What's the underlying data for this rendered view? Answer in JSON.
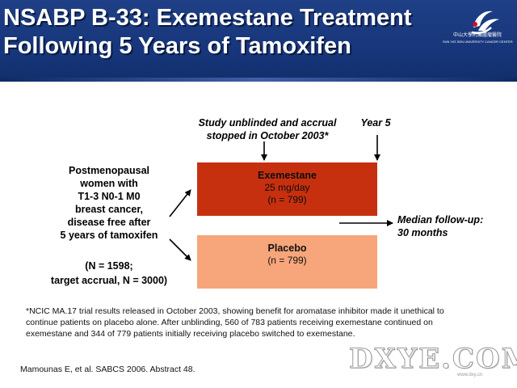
{
  "header": {
    "title_line1": "NSABP B-33: Exemestane Treatment",
    "title_line2": "Following 5 Years of Tamoxifen",
    "logo_name": "中山大學附屬腫瘤醫院",
    "logo_sub": "SUN YAT-SEN UNIVERSITY CANCER CENTER",
    "colors": {
      "header_bg": "#1f3f86",
      "exemestane_box": "#c7300f",
      "placebo_box": "#f7a57a"
    }
  },
  "diagram": {
    "population": [
      "Postmenopausal",
      "women with",
      "T1-3 N0-1 M0",
      "breast cancer,",
      "disease free after",
      "5 years of tamoxifen"
    ],
    "enrollment": [
      "(N = 1598;",
      "target accrual, N = 3000)"
    ],
    "study_note": [
      "Study unblinded and accrual",
      "stopped in October 2003*"
    ],
    "year_label": "Year 5",
    "arm1": {
      "title": "Exemestane",
      "dose": "25 mg/day",
      "n": "(n = 799)"
    },
    "arm2": {
      "title": "Placebo",
      "n": "(n = 799)"
    },
    "followup": [
      "Median follow-up:",
      "30 months"
    ]
  },
  "footnote": "*NCIC MA.17 trial results released in October 2003, showing benefit for aromatase inhibitor made it unethical to continue patients on placebo alone. After unblinding, 560 of 783 patients receiving exemestane continued on exemestane and 344 of 779 patients initially receiving placebo switched to exemestane.",
  "reference": "Mamounas E, et al. SABCS 2006. Abstract 48.",
  "watermark": {
    "main": "DXYE.COM",
    "sub": "www.dxy.cn"
  }
}
